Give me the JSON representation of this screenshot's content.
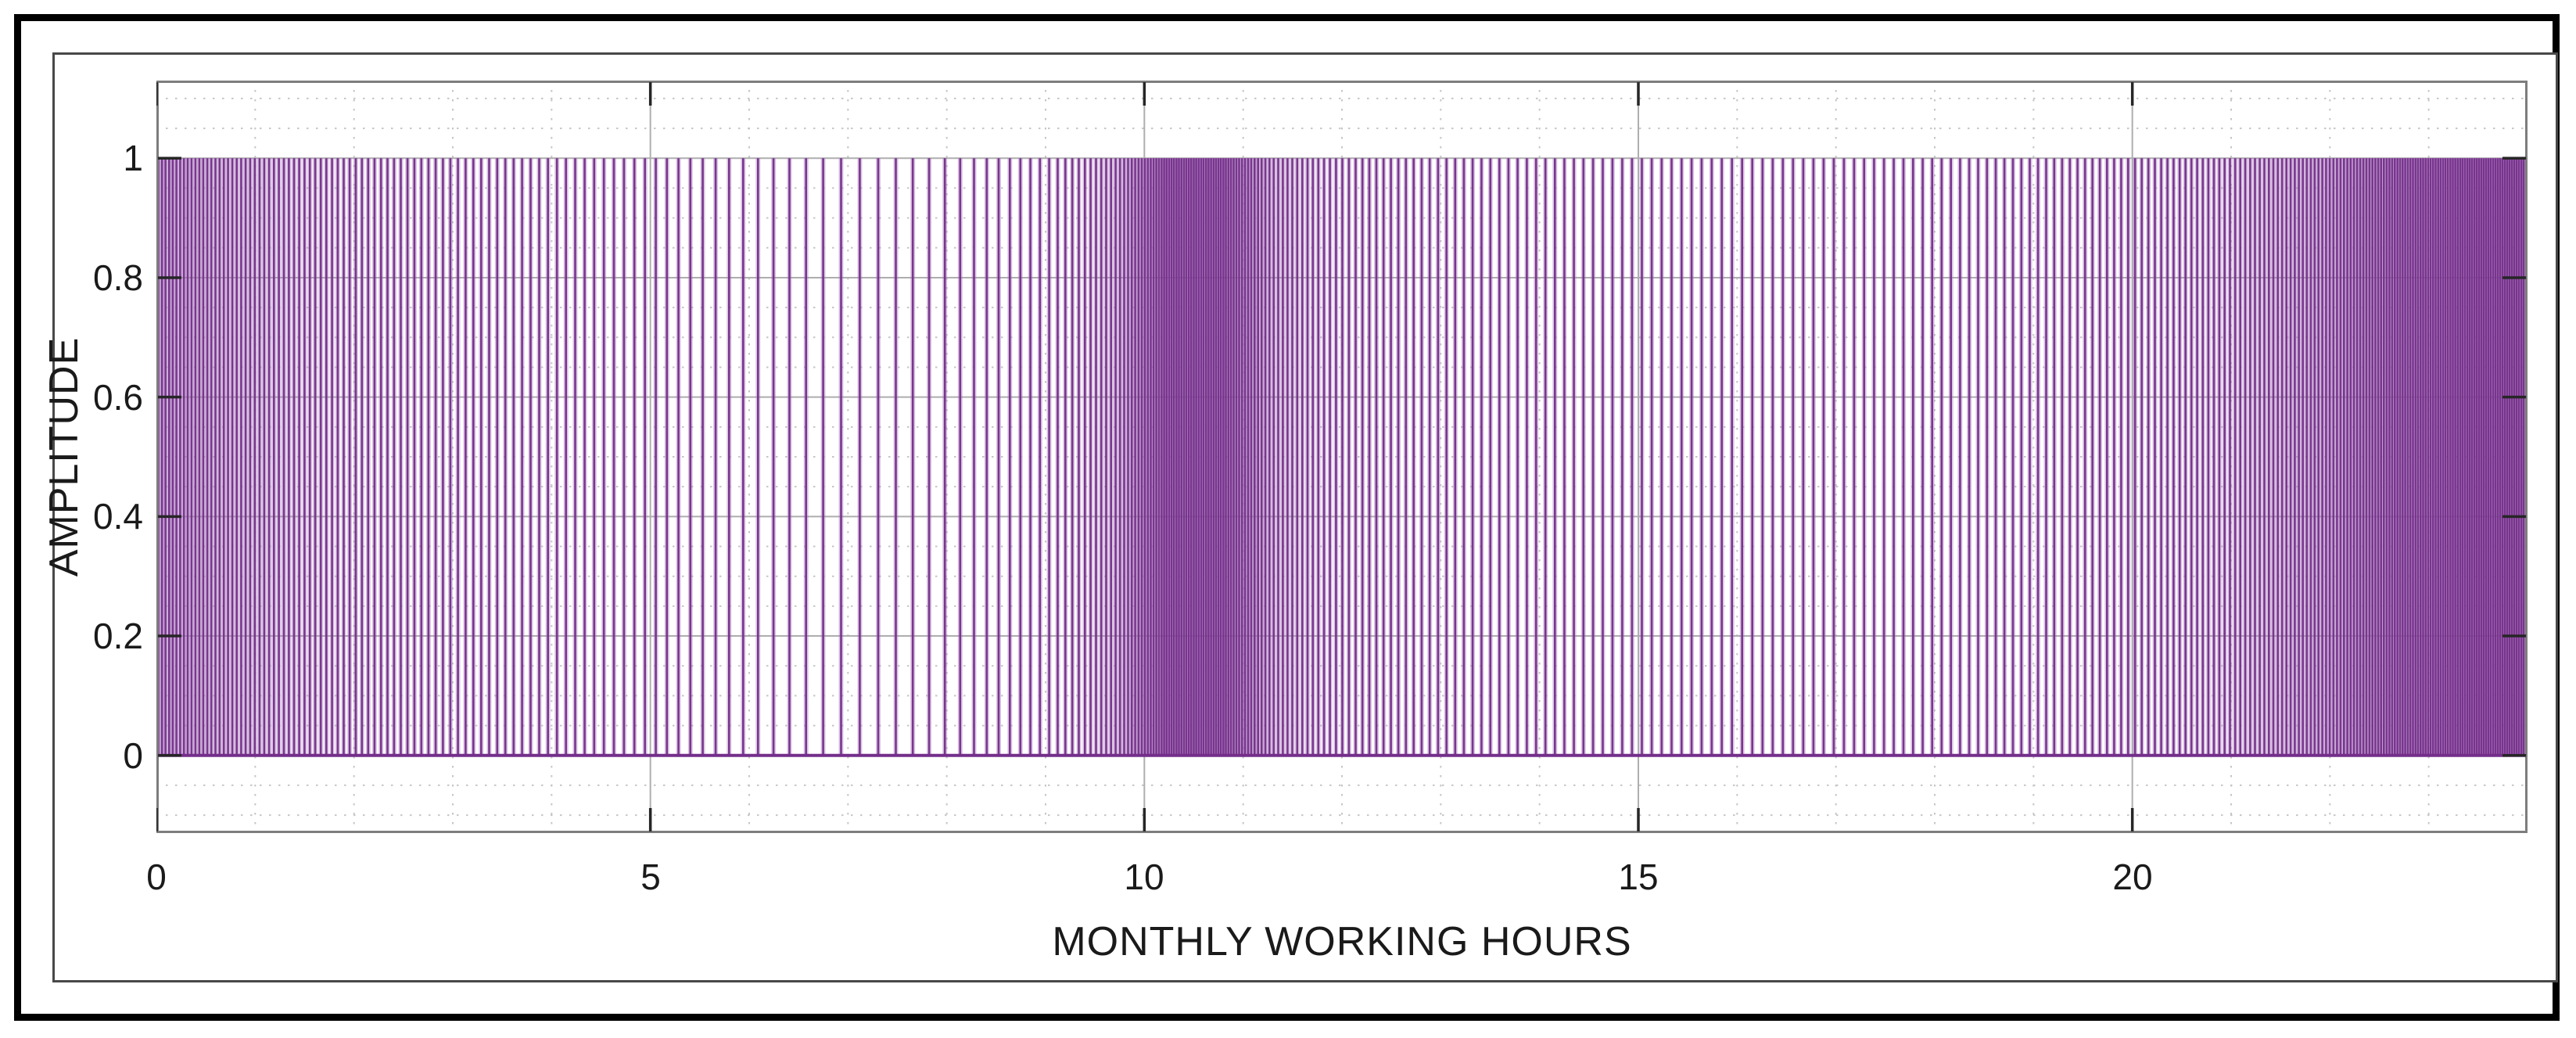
{
  "figure": {
    "kind": "matlab-style-figure",
    "background": "#ffffff",
    "outer_border_color": "#000000",
    "inner_border_color": "#484848"
  },
  "chart_data": {
    "type": "stem",
    "title": "",
    "xlabel": "MONTHLY WORKING HOURS",
    "ylabel": "AMPLITUDE",
    "xlim": [
      0,
      24
    ],
    "ylim": [
      -0.13,
      1.13
    ],
    "x_ticks": [
      0,
      5,
      10,
      15,
      20
    ],
    "x_tick_labels": [
      "0",
      "5",
      "10",
      "15",
      "20"
    ],
    "y_ticks": [
      1,
      0.8,
      0.6,
      0.4,
      0.2,
      0
    ],
    "y_tick_labels": [
      "1",
      "0.8",
      "0.6",
      "0.4",
      "0.2",
      "0"
    ],
    "amplitude": 1.0,
    "baseline": 0.0,
    "grid": {
      "major": true,
      "minor": true,
      "x_minor_step": 1,
      "y_minor_step": 0.05,
      "legend": "none"
    },
    "pulse_density_profile": {
      "comment": "Pulse-density-modulated train of unit-amplitude vertical lines; lines_per_unit is estimated instantaneous line density vs x (hours).",
      "x": [
        0,
        1,
        2,
        3,
        4,
        5,
        6,
        7,
        8,
        9,
        9.7,
        10.2,
        10.8,
        11.3,
        12,
        13,
        14,
        15,
        16,
        17,
        18,
        19,
        20,
        21,
        22,
        22.7,
        23.5,
        24
      ],
      "lines_per_unit": [
        28,
        21,
        16,
        13,
        11,
        9,
        6.5,
        5.2,
        6.5,
        11,
        22,
        40,
        40,
        22,
        15,
        11.5,
        10.5,
        10,
        9.7,
        9.7,
        10.5,
        12,
        14.5,
        19,
        27,
        38,
        42,
        42
      ]
    },
    "colors": {
      "pulse_core": "#742e8a",
      "pulse_halo": "#a873ba",
      "solid_region_appearance": "#8b3d9b",
      "axis_box": "#7d7d7d",
      "major_grid": "#aeaeae",
      "minor_grid": "#c6c6c6",
      "tick": "#262626",
      "text": "#1a1a1a",
      "plot_background": "#ffffff"
    }
  }
}
